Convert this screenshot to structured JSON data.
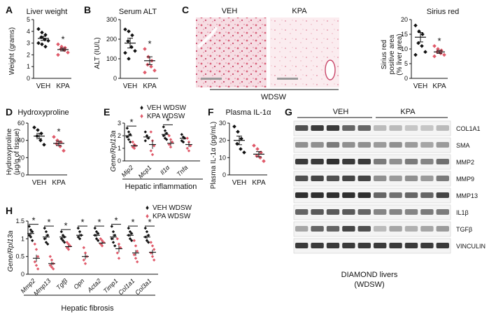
{
  "colors": {
    "veh": "#111111",
    "kpa": "#e05a6a",
    "stain": "#d9607a"
  },
  "panels": {
    "A": {
      "letter": "A",
      "title": "Liver weight",
      "ylabel": "Weight (grams)"
    },
    "B": {
      "letter": "B",
      "title": "Serum ALT",
      "ylabel": "ALT (IU/L)"
    },
    "C": {
      "letter": "C",
      "img_left": "VEH",
      "img_right": "KPA",
      "caption": "WDSW",
      "sub_title": "Sirius red",
      "ylabel1": "Sirius red",
      "ylabel2": "positive area",
      "ylabel3": "(% liver area)"
    },
    "D": {
      "letter": "D",
      "title": "Hydroxyproline",
      "ylabel1": "Hydroxyproline",
      "ylabel2": "(µg/g of tissue)"
    },
    "E": {
      "letter": "E",
      "ylabel1": "Gene/",
      "ylabel2": "Rpl13a",
      "caption": "Hepatic inflammation"
    },
    "F": {
      "letter": "F",
      "title": "Plasma IL-1α",
      "ylabel": "Plasma IL-1α (pg/mL)"
    },
    "G": {
      "letter": "G",
      "group1": "VEH",
      "group2": "KPA",
      "caption1": "DIAMOND livers",
      "caption2": "(WDSW)",
      "proteins": [
        "COL1A1",
        "SMA",
        "MMP2",
        "MMP9",
        "MMP13",
        "IL1β",
        "TGFβ",
        "VINCULIN"
      ]
    },
    "H": {
      "letter": "H",
      "ylabel1": "Gene/",
      "ylabel2": "Rpl13a",
      "caption": "Hepatic fibrosis"
    }
  },
  "legend": {
    "veh": "VEH WDSW",
    "kpa": "KPA WDSW"
  },
  "sig": "*",
  "chart_data": [
    {
      "id": "A",
      "type": "scatter",
      "title": "Liver weight",
      "ylabel": "Weight (grams)",
      "categories": [
        "VEH",
        "KPA"
      ],
      "ylim": [
        0,
        5
      ],
      "yticks": [
        0,
        1,
        2,
        3,
        4,
        5
      ],
      "series": [
        {
          "name": "VEH",
          "values": [
            4.2,
            3.9,
            3.7,
            3.5,
            3.3,
            3.2,
            3.0,
            2.9,
            2.7
          ]
        },
        {
          "name": "KPA",
          "values": [
            2.9,
            2.7,
            2.6,
            2.5,
            2.4,
            2.2,
            2.0
          ]
        }
      ],
      "mean": [
        3.4,
        2.45
      ],
      "sem": [
        0.17,
        0.12
      ],
      "significant": [
        false,
        true
      ]
    },
    {
      "id": "B",
      "type": "scatter",
      "title": "Serum ALT",
      "ylabel": "ALT (IU/L)",
      "categories": [
        "VEH",
        "KPA"
      ],
      "ylim": [
        0,
        300
      ],
      "yticks": [
        0,
        100,
        200,
        300
      ],
      "series": [
        {
          "name": "VEH",
          "values": [
            250,
            240,
            220,
            190,
            160,
            140,
            130,
            100
          ]
        },
        {
          "name": "KPA",
          "values": [
            150,
            110,
            90,
            70,
            60,
            40,
            30
          ]
        }
      ],
      "mean": [
        180,
        90
      ],
      "sem": [
        25,
        20
      ],
      "significant": [
        false,
        true
      ]
    },
    {
      "id": "C",
      "type": "scatter",
      "title": "Sirius red",
      "ylabel": "Sirius red positive area (% liver area)",
      "categories": [
        "VEH",
        "KPA"
      ],
      "ylim": [
        0,
        20
      ],
      "yticks": [
        0,
        5,
        10,
        15,
        20
      ],
      "series": [
        {
          "name": "VEH",
          "values": [
            18,
            16,
            15,
            12,
            11,
            9,
            8
          ]
        },
        {
          "name": "KPA",
          "values": [
            11,
            10,
            9.5,
            9,
            8.5,
            8,
            7.5
          ]
        }
      ],
      "mean": [
        14,
        9
      ],
      "sem": [
        1.6,
        0.5
      ],
      "significant": [
        false,
        true
      ]
    },
    {
      "id": "D",
      "type": "scatter",
      "title": "Hydroxyproline",
      "ylabel": "Hydroxyproline (µg/g of tissue)",
      "categories": [
        "VEH",
        "KPA"
      ],
      "ylim": [
        0,
        60
      ],
      "yticks": [
        0,
        20,
        40,
        60
      ],
      "series": [
        {
          "name": "VEH",
          "values": [
            55,
            52,
            48,
            45,
            40,
            35
          ]
        },
        {
          "name": "KPA",
          "values": [
            44,
            40,
            38,
            36,
            33,
            28
          ]
        }
      ],
      "mean": [
        45,
        36.5
      ],
      "sem": [
        3,
        2.5
      ],
      "significant": [
        false,
        true
      ]
    },
    {
      "id": "E",
      "type": "scatter",
      "ylabel": "Gene/Rpl13a",
      "xlabel": "Hepatic inflammation",
      "categories": [
        "Mip2",
        "Mcp1",
        "Il1α",
        "Tnfa"
      ],
      "ylim": [
        0,
        3
      ],
      "yticks": [
        0,
        1,
        2,
        3
      ],
      "series": [
        {
          "name": "VEH WDSW",
          "values": [
            [
              2.6,
              2.3,
              2.1,
              1.9,
              1.7,
              1.5
            ],
            [
              2.3,
              2.0,
              1.8,
              1.6
            ],
            [
              2.7,
              2.4,
              2.2,
              2.0,
              1.8,
              1.7
            ],
            [
              2.1,
              1.9,
              1.8,
              1.6,
              1.5
            ]
          ],
          "mean": [
            2.0,
            1.9,
            2.1,
            1.8
          ],
          "sem": [
            0.15,
            0.15,
            0.15,
            0.12
          ]
        },
        {
          "name": "KPA WDSW",
          "values": [
            [
              1.5,
              1.3,
              1.2,
              1.1,
              1.0
            ],
            [
              2.3,
              1.6,
              1.2,
              0.8,
              0.5
            ],
            [
              2.0,
              1.7,
              1.5,
              1.3,
              1.1
            ],
            [
              1.8,
              1.5,
              1.2,
              1.0,
              0.8
            ]
          ],
          "mean": [
            1.2,
            1.3,
            1.4,
            1.3
          ],
          "sem": [
            0.1,
            0.35,
            0.2,
            0.2
          ]
        }
      ],
      "significant": [
        true,
        false,
        true,
        false
      ]
    },
    {
      "id": "F",
      "type": "scatter",
      "title": "Plasma IL-1α",
      "ylabel": "Plasma IL-1α (pg/mL)",
      "categories": [
        "VEH",
        "KPA"
      ],
      "ylim": [
        0,
        30
      ],
      "yticks": [
        0,
        10,
        20,
        30
      ],
      "series": [
        {
          "name": "VEH",
          "values": [
            28,
            25,
            21,
            18,
            15,
            13
          ]
        },
        {
          "name": "KPA",
          "values": [
            17,
            15,
            13,
            11,
            10,
            8
          ]
        }
      ],
      "mean": [
        20,
        12
      ],
      "sem": [
        2.5,
        1.5
      ],
      "significant": [
        false,
        false
      ]
    },
    {
      "id": "H",
      "type": "scatter",
      "ylabel": "Gene/Rpl13a",
      "xlabel": "Hepatic fibrosis",
      "categories": [
        "Mmp2",
        "Mmp13",
        "Tgfβ",
        "Opn",
        "Acta2",
        "Timp1",
        "Col1a1",
        "Col3a1"
      ],
      "ylim": [
        0,
        1.5
      ],
      "yticks": [
        0,
        0.5,
        1.0,
        1.5
      ],
      "series": [
        {
          "name": "VEH WDSW",
          "values": [
            [
              1.35,
              1.25,
              1.2,
              1.1,
              1.05,
              0.95
            ],
            [
              1.3,
              1.2,
              1.1,
              1.0,
              0.9,
              0.85
            ],
            [
              1.2,
              1.1,
              1.05,
              1.0,
              0.95,
              0.9
            ],
            [
              1.3,
              1.2,
              1.1,
              1.05,
              1.0
            ],
            [
              1.3,
              1.2,
              1.15,
              1.1,
              1.0,
              0.95
            ],
            [
              1.35,
              1.2,
              1.1,
              1.0,
              0.9,
              0.8
            ],
            [
              1.3,
              1.2,
              1.15,
              1.1,
              1.0,
              0.95
            ],
            [
              1.3,
              1.2,
              1.1,
              1.05,
              0.95,
              0.9
            ]
          ],
          "mean": [
            1.15,
            1.05,
            1.05,
            1.1,
            1.1,
            1.05,
            1.1,
            1.05
          ],
          "sem": [
            0.07,
            0.07,
            0.05,
            0.05,
            0.05,
            0.08,
            0.05,
            0.06
          ]
        },
        {
          "name": "KPA WDSW",
          "values": [
            [
              0.85,
              0.7,
              0.5,
              0.35,
              0.25,
              0.15
            ],
            [
              0.5,
              0.4,
              0.3,
              0.25,
              0.2,
              0.15
            ],
            [
              0.9,
              0.85,
              0.8,
              0.75,
              0.7
            ],
            [
              0.75,
              0.6,
              0.5,
              0.4,
              0.3
            ],
            [
              1.0,
              0.95,
              0.9,
              0.85,
              0.8
            ],
            [
              1.0,
              0.85,
              0.75,
              0.6,
              0.45
            ],
            [
              0.95,
              0.8,
              0.65,
              0.55,
              0.45,
              0.35
            ],
            [
              0.9,
              0.8,
              0.7,
              0.6,
              0.5,
              0.4
            ]
          ],
          "mean": [
            0.45,
            0.3,
            0.78,
            0.5,
            0.88,
            0.72,
            0.6,
            0.62
          ],
          "sem": [
            0.1,
            0.05,
            0.04,
            0.08,
            0.04,
            0.1,
            0.08,
            0.07
          ]
        }
      ],
      "significant": [
        true,
        true,
        true,
        true,
        true,
        true,
        true,
        true
      ]
    }
  ]
}
